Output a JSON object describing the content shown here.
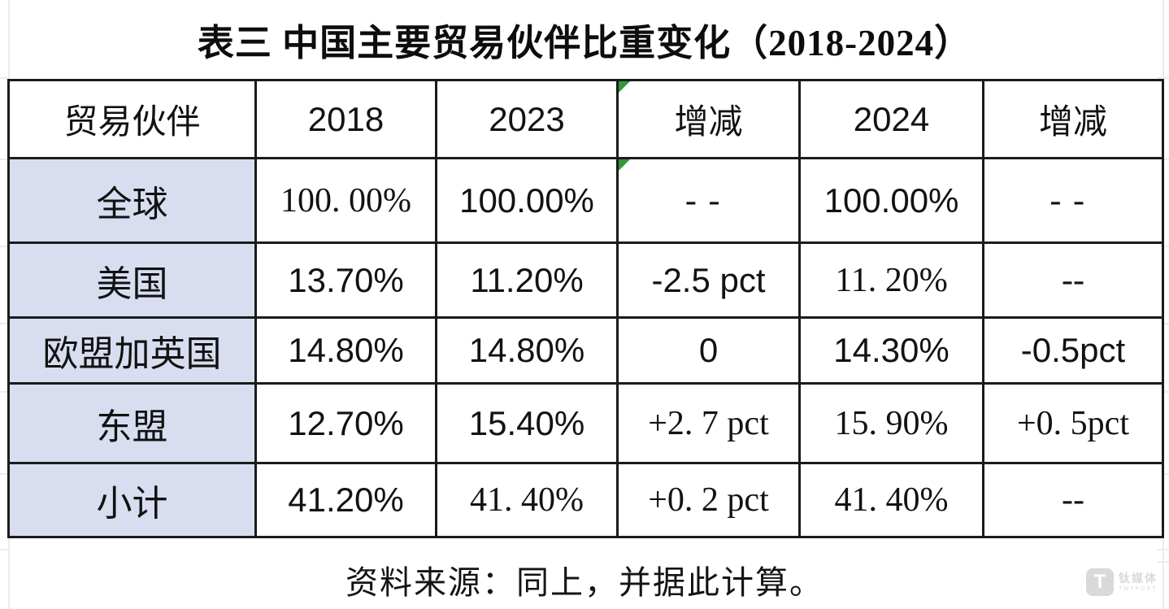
{
  "title": "表三 中国主要贸易伙伴比重变化（2018-2024）",
  "table": {
    "header": [
      {
        "t": "贸易伙伴",
        "f": "serif"
      },
      {
        "t": "2018",
        "f": "sans"
      },
      {
        "t": "2023",
        "f": "sans"
      },
      {
        "t": "增减",
        "f": "serif",
        "triangle": true
      },
      {
        "t": "2024",
        "f": "sans"
      },
      {
        "t": "增减",
        "f": "serif"
      }
    ],
    "rows": [
      {
        "cells": [
          {
            "t": "全球",
            "f": "serif",
            "head": true
          },
          {
            "t": "100. 00%",
            "f": "serif"
          },
          {
            "t": "100.00%",
            "f": "sans"
          },
          {
            "t": "--",
            "f": "serif",
            "sp": true,
            "triangle": true
          },
          {
            "t": "100.00%",
            "f": "sans"
          },
          {
            "t": "--",
            "f": "serif",
            "sp": true
          }
        ]
      },
      {
        "cells": [
          {
            "t": "美国",
            "f": "serif",
            "head": true
          },
          {
            "t": "13.70%",
            "f": "sans"
          },
          {
            "t": "11.20%",
            "f": "sans"
          },
          {
            "t": "-2.5 pct",
            "f": "sans"
          },
          {
            "t": "11. 20%",
            "f": "serif"
          },
          {
            "t": "--",
            "f": "serif"
          }
        ]
      },
      {
        "cells": [
          {
            "t": "欧盟加英国",
            "f": "serif",
            "head": true
          },
          {
            "t": "14.80%",
            "f": "sans"
          },
          {
            "t": "14.80%",
            "f": "sans"
          },
          {
            "t": "0",
            "f": "sans"
          },
          {
            "t": "14.30%",
            "f": "sans"
          },
          {
            "t": "-0.5pct",
            "f": "sans"
          }
        ]
      },
      {
        "cells": [
          {
            "t": "东盟",
            "f": "serif",
            "head": true
          },
          {
            "t": "12.70%",
            "f": "sans"
          },
          {
            "t": "15.40%",
            "f": "sans"
          },
          {
            "t": "+2. 7 pct",
            "f": "serif"
          },
          {
            "t": "15. 90%",
            "f": "serif"
          },
          {
            "t": "+0. 5pct",
            "f": "serif"
          }
        ]
      },
      {
        "cells": [
          {
            "t": "小计",
            "f": "serif",
            "head": true
          },
          {
            "t": "41.20%",
            "f": "sans"
          },
          {
            "t": "41. 40%",
            "f": "serif"
          },
          {
            "t": "+0. 2 pct",
            "f": "serif"
          },
          {
            "t": "41. 40%",
            "f": "serif"
          },
          {
            "t": "--",
            "f": "serif"
          }
        ]
      }
    ]
  },
  "source_note": "资料来源：同上，并据此计算。",
  "watermark": {
    "logo_letter": "T",
    "name": "钛媒体",
    "sub": "TMTPOST"
  },
  "colors": {
    "header_fill": "#d8def0",
    "border": "#1b1b1b",
    "error_triangle_green": "#2e9b38",
    "margin_gridline": "#ececec",
    "watermark_gray": "#d9d9d9"
  }
}
